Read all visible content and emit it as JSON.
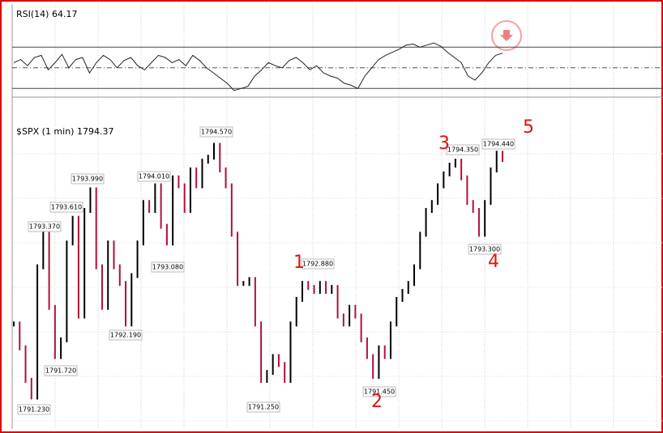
{
  "chart_data": [
    {
      "type": "line",
      "title": "RSI(14)",
      "last": 64.17,
      "color": "#222222",
      "ylim": [
        20,
        100
      ],
      "levels": [
        70,
        50,
        30
      ],
      "values": [
        55,
        58,
        52,
        60,
        62,
        48,
        55,
        63,
        50,
        58,
        60,
        45,
        55,
        62,
        58,
        50,
        57,
        60,
        52,
        48,
        55,
        62,
        60,
        55,
        58,
        52,
        62,
        57,
        50,
        45,
        40,
        35,
        28,
        30,
        32,
        42,
        48,
        55,
        52,
        50,
        57,
        60,
        55,
        48,
        52,
        45,
        42,
        40,
        35,
        33,
        30,
        42,
        50,
        58,
        62,
        65,
        68,
        72,
        73,
        70,
        72,
        74,
        71,
        65,
        60,
        55,
        42,
        38,
        45,
        55,
        62,
        64.17
      ]
    },
    {
      "type": "bar",
      "title": "$SPX (1 min)",
      "last": 1794.37,
      "up_color": "#000000",
      "down_color": "#b0103a",
      "ylim": [
        1791.08,
        1794.8
      ],
      "values": [
        1792.3,
        1792.0,
        1791.59,
        1791.38,
        1793.02,
        1793.43,
        1792.51,
        1791.89,
        1792.1,
        1793.32,
        1793.63,
        1792.4,
        1793.73,
        1793.99,
        1793.02,
        1792.51,
        1793.32,
        1793.02,
        1792.81,
        1792.3,
        1792.91,
        1793.32,
        1793.83,
        1793.73,
        1794.04,
        1793.53,
        1793.32,
        1794.14,
        1794.04,
        1793.73,
        1794.24,
        1794.04,
        1794.35,
        1794.4,
        1794.55,
        1794.24,
        1794.04,
        1793.43,
        1792.81,
        1792.81,
        1792.86,
        1792.3,
        1791.59,
        1791.69,
        1791.89,
        1791.79,
        1791.59,
        1792.3,
        1792.61,
        1792.81,
        1792.76,
        1792.71,
        1792.81,
        1792.71,
        1792.76,
        1792.4,
        1792.3,
        1792.51,
        1792.4,
        1792.1,
        1791.89,
        1791.64,
        1792.0,
        1791.89,
        1792.3,
        1792.61,
        1792.71,
        1792.81,
        1793.02,
        1793.43,
        1793.73,
        1793.83,
        1794.04,
        1794.19,
        1794.3,
        1794.35,
        1794.14,
        1793.83,
        1793.73,
        1793.43,
        1793.83,
        1794.24,
        1794.45,
        1794.37
      ],
      "price_labels": [
        {
          "value": 1791.23,
          "label": "1791.230"
        },
        {
          "value": 1791.72,
          "label": "1791.720"
        },
        {
          "value": 1792.19,
          "label": "1792.190"
        },
        {
          "value": 1793.08,
          "label": "1793.080"
        },
        {
          "value": 1793.37,
          "label": "1793.370"
        },
        {
          "value": 1793.61,
          "label": "1793.610"
        },
        {
          "value": 1793.99,
          "label": "1793.990"
        },
        {
          "value": 1794.01,
          "label": "1794.010"
        },
        {
          "value": 1794.57,
          "label": "1794.570"
        },
        {
          "value": 1791.25,
          "label": "1791.250"
        },
        {
          "value": 1792.88,
          "label": "1792.880"
        },
        {
          "value": 1791.45,
          "label": "1791.450"
        },
        {
          "value": 1794.35,
          "label": "1794.350"
        },
        {
          "value": 1794.44,
          "label": "1794.440"
        },
        {
          "value": 1793.3,
          "label": "1793.300"
        }
      ],
      "wave_labels": [
        "1",
        "2",
        "3",
        "4",
        "5"
      ]
    }
  ]
}
